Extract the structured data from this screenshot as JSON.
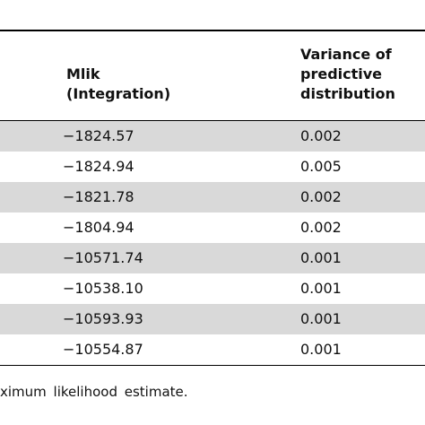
{
  "table": {
    "header": {
      "col1_line1": "Mlik",
      "col1_line2": "(Integration)",
      "col2_line1": "Variance of",
      "col2_line2": "predictive",
      "col2_line3": "distribution"
    },
    "rows": [
      {
        "mlik": "−1824.57",
        "variance": "0.002"
      },
      {
        "mlik": "−1824.94",
        "variance": "0.005"
      },
      {
        "mlik": "−1821.78",
        "variance": "0.002"
      },
      {
        "mlik": "−1804.94",
        "variance": "0.002"
      },
      {
        "mlik": "−10571.74",
        "variance": "0.001"
      },
      {
        "mlik": "−10538.10",
        "variance": "0.001"
      },
      {
        "mlik": "−10593.93",
        "variance": "0.001"
      },
      {
        "mlik": "−10554.87",
        "variance": "0.001"
      }
    ],
    "shaded_color": "#d9d9d9"
  },
  "footnote": "ximum likelihood estimate."
}
